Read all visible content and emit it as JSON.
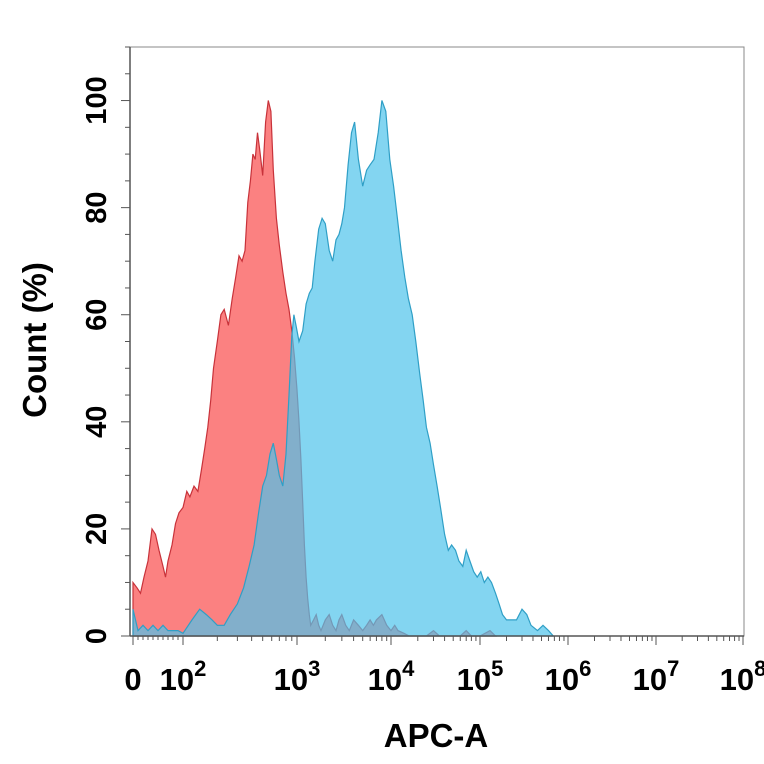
{
  "chart_data": {
    "type": "area",
    "title": "",
    "xlabel": "APC-A",
    "ylabel": "Count  (%)",
    "x_scale": "log",
    "xlim": [
      0,
      100000000
    ],
    "ylim": [
      0,
      110
    ],
    "grid": false,
    "legend": "none",
    "x_ticks": [
      {
        "value": 0,
        "base": "0",
        "exp": ""
      },
      {
        "value": 100,
        "base": "10",
        "exp": "2"
      },
      {
        "value": 1000,
        "base": "10",
        "exp": "3"
      },
      {
        "value": 10000,
        "base": "10",
        "exp": "4"
      },
      {
        "value": 100000,
        "base": "10",
        "exp": "5"
      },
      {
        "value": 1000000,
        "base": "10",
        "exp": "6"
      },
      {
        "value": 10000000,
        "base": "10",
        "exp": "7"
      },
      {
        "value": 100000000,
        "base": "10",
        "exp": "8"
      }
    ],
    "y_ticks": [
      {
        "value": 0,
        "label": "0"
      },
      {
        "value": 20,
        "label": "20"
      },
      {
        "value": 40,
        "label": "40"
      },
      {
        "value": 60,
        "label": "60"
      },
      {
        "value": 80,
        "label": "80"
      },
      {
        "value": 100,
        "label": "100"
      }
    ],
    "series": [
      {
        "fill": "#fa6b6b",
        "stroke": "#c8323a",
        "opacity": 0.85,
        "points": [
          [
            0,
            10
          ],
          [
            8,
            9
          ],
          [
            15,
            8
          ],
          [
            22,
            11
          ],
          [
            30,
            14
          ],
          [
            38,
            20
          ],
          [
            45,
            19
          ],
          [
            52,
            16
          ],
          [
            60,
            13
          ],
          [
            65,
            11
          ],
          [
            70,
            14
          ],
          [
            78,
            17
          ],
          [
            85,
            21
          ],
          [
            92,
            23
          ],
          [
            100,
            24
          ],
          [
            108,
            27
          ],
          [
            115,
            26
          ],
          [
            125,
            28
          ],
          [
            135,
            27
          ],
          [
            145,
            31
          ],
          [
            155,
            35
          ],
          [
            165,
            39
          ],
          [
            175,
            44
          ],
          [
            185,
            50
          ],
          [
            200,
            55
          ],
          [
            215,
            60
          ],
          [
            230,
            61
          ],
          [
            250,
            58
          ],
          [
            270,
            63
          ],
          [
            290,
            67
          ],
          [
            310,
            71
          ],
          [
            330,
            70
          ],
          [
            350,
            72
          ],
          [
            370,
            81
          ],
          [
            390,
            85
          ],
          [
            410,
            90
          ],
          [
            430,
            89
          ],
          [
            450,
            94
          ],
          [
            470,
            91
          ],
          [
            500,
            86
          ],
          [
            530,
            96
          ],
          [
            560,
            100
          ],
          [
            590,
            98
          ],
          [
            620,
            87
          ],
          [
            660,
            78
          ],
          [
            700,
            73
          ],
          [
            750,
            68
          ],
          [
            800,
            64
          ],
          [
            850,
            61
          ],
          [
            900,
            57
          ],
          [
            950,
            52
          ],
          [
            1000,
            46
          ],
          [
            1050,
            40
          ],
          [
            1100,
            33
          ],
          [
            1150,
            25
          ],
          [
            1200,
            17
          ],
          [
            1250,
            11
          ],
          [
            1300,
            7
          ],
          [
            1350,
            4
          ],
          [
            1400,
            2
          ],
          [
            1500,
            3
          ],
          [
            1600,
            4
          ],
          [
            1700,
            2
          ],
          [
            1800,
            1
          ],
          [
            2000,
            3
          ],
          [
            2200,
            4
          ],
          [
            2400,
            2
          ],
          [
            2600,
            1
          ],
          [
            2800,
            3
          ],
          [
            3000,
            4
          ],
          [
            3300,
            2
          ],
          [
            3600,
            1
          ],
          [
            4000,
            3
          ],
          [
            4500,
            2
          ],
          [
            5000,
            1
          ],
          [
            5500,
            2
          ],
          [
            6000,
            3
          ],
          [
            6500,
            2
          ],
          [
            7000,
            3
          ],
          [
            8000,
            4
          ],
          [
            9000,
            2
          ],
          [
            10000,
            1
          ],
          [
            11000,
            2
          ],
          [
            12000,
            1
          ],
          [
            14000,
            0.5
          ],
          [
            16000,
            0
          ],
          [
            25000,
            0
          ],
          [
            30000,
            1
          ],
          [
            35000,
            0
          ],
          [
            60000,
            0
          ],
          [
            70000,
            1
          ],
          [
            80000,
            0
          ],
          [
            100000,
            0
          ],
          [
            130000,
            1
          ],
          [
            150000,
            0
          ]
        ]
      },
      {
        "fill": "#4fc3eb",
        "stroke": "#2f9fc6",
        "opacity": 0.7,
        "points": [
          [
            0,
            5
          ],
          [
            5,
            3
          ],
          [
            10,
            1
          ],
          [
            20,
            2
          ],
          [
            30,
            1
          ],
          [
            40,
            2
          ],
          [
            50,
            1
          ],
          [
            60,
            2
          ],
          [
            70,
            1
          ],
          [
            90,
            1
          ],
          [
            100,
            0.5
          ],
          [
            120,
            3
          ],
          [
            140,
            5
          ],
          [
            160,
            4
          ],
          [
            180,
            3
          ],
          [
            200,
            2
          ],
          [
            230,
            2
          ],
          [
            260,
            4
          ],
          [
            300,
            6
          ],
          [
            340,
            9
          ],
          [
            380,
            13
          ],
          [
            420,
            17
          ],
          [
            460,
            23
          ],
          [
            500,
            28
          ],
          [
            540,
            30
          ],
          [
            580,
            34
          ],
          [
            620,
            36
          ],
          [
            660,
            33
          ],
          [
            700,
            30
          ],
          [
            750,
            28
          ],
          [
            800,
            34
          ],
          [
            850,
            45
          ],
          [
            900,
            56
          ],
          [
            940,
            60
          ],
          [
            980,
            58
          ],
          [
            1050,
            55
          ],
          [
            1150,
            57
          ],
          [
            1250,
            62
          ],
          [
            1350,
            64
          ],
          [
            1450,
            65
          ],
          [
            1550,
            70
          ],
          [
            1700,
            76
          ],
          [
            1850,
            78
          ],
          [
            2000,
            77
          ],
          [
            2200,
            72
          ],
          [
            2400,
            70
          ],
          [
            2600,
            74
          ],
          [
            2800,
            75
          ],
          [
            3000,
            77
          ],
          [
            3200,
            80
          ],
          [
            3500,
            88
          ],
          [
            3800,
            94
          ],
          [
            4100,
            96
          ],
          [
            4500,
            89
          ],
          [
            5000,
            84
          ],
          [
            5500,
            87
          ],
          [
            6000,
            88
          ],
          [
            6600,
            89
          ],
          [
            7300,
            94
          ],
          [
            8000,
            100
          ],
          [
            8800,
            98
          ],
          [
            9700,
            89
          ],
          [
            10700,
            84
          ],
          [
            11800,
            78
          ],
          [
            13000,
            72
          ],
          [
            14300,
            67
          ],
          [
            15700,
            63
          ],
          [
            17300,
            60
          ],
          [
            19000,
            55
          ],
          [
            21000,
            49
          ],
          [
            23000,
            44
          ],
          [
            25000,
            39
          ],
          [
            27500,
            36
          ],
          [
            30000,
            32
          ],
          [
            33000,
            28
          ],
          [
            36000,
            24
          ],
          [
            40000,
            19
          ],
          [
            44000,
            16
          ],
          [
            48000,
            17
          ],
          [
            53000,
            16
          ],
          [
            58000,
            14
          ],
          [
            64000,
            13
          ],
          [
            70000,
            16
          ],
          [
            77000,
            14
          ],
          [
            85000,
            12
          ],
          [
            93000,
            11
          ],
          [
            102000,
            12
          ],
          [
            112000,
            10
          ],
          [
            123000,
            11
          ],
          [
            135000,
            10
          ],
          [
            150000,
            8
          ],
          [
            165000,
            6
          ],
          [
            180000,
            4
          ],
          [
            200000,
            3
          ],
          [
            230000,
            3
          ],
          [
            260000,
            3
          ],
          [
            300000,
            5
          ],
          [
            340000,
            4
          ],
          [
            380000,
            2
          ],
          [
            450000,
            1
          ],
          [
            520000,
            2
          ],
          [
            600000,
            1
          ],
          [
            680000,
            0
          ]
        ]
      }
    ]
  }
}
